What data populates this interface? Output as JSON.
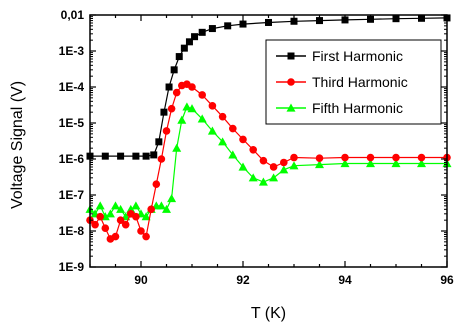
{
  "chart_data": {
    "type": "line",
    "title": "",
    "xlabel": "T (K)",
    "ylabel": "Voltage Signal (V)",
    "xlim": [
      89,
      96
    ],
    "ylim_log10": [
      -9,
      -2
    ],
    "y_scale": "log",
    "x_ticks": [
      90,
      92,
      94,
      96
    ],
    "x_tick_labels": [
      "90",
      "92",
      "94",
      "96"
    ],
    "y_ticks_log10": [
      -2,
      -3,
      -4,
      -5,
      -6,
      -7,
      -8,
      -9
    ],
    "y_tick_labels": [
      "0,01",
      "1E-3",
      "1E-4",
      "1E-5",
      "1E-6",
      "1E-7",
      "1E-8",
      "1E-9"
    ],
    "grid": false,
    "legend_position": "upper-right",
    "series": [
      {
        "name": "First Harmonic",
        "color": "#000000",
        "marker": "square",
        "x": [
          89.0,
          89.3,
          89.6,
          89.9,
          90.1,
          90.25,
          90.35,
          90.45,
          90.55,
          90.65,
          90.75,
          90.85,
          90.95,
          91.05,
          91.2,
          91.4,
          91.7,
          92.0,
          92.5,
          93.0,
          93.5,
          94.0,
          94.5,
          95.0,
          95.5,
          96.0
        ],
        "y": [
          1.2e-06,
          1.2e-06,
          1.2e-06,
          1.2e-06,
          1.2e-06,
          1.3e-06,
          3e-06,
          2e-05,
          0.0001,
          0.0003,
          0.0007,
          0.0012,
          0.0018,
          0.0025,
          0.0033,
          0.0042,
          0.005,
          0.0056,
          0.0062,
          0.0067,
          0.007,
          0.0073,
          0.0076,
          0.0079,
          0.0081,
          0.0083
        ]
      },
      {
        "name": "Third Harmonic",
        "color": "#ff0000",
        "marker": "circle",
        "x": [
          89.0,
          89.1,
          89.2,
          89.3,
          89.4,
          89.5,
          89.6,
          89.7,
          89.8,
          89.9,
          90.0,
          90.1,
          90.2,
          90.3,
          90.4,
          90.5,
          90.6,
          90.7,
          90.8,
          90.9,
          91.0,
          91.2,
          91.4,
          91.6,
          91.8,
          92.0,
          92.2,
          92.4,
          92.6,
          92.8,
          93.0,
          93.5,
          94.0,
          94.5,
          95.0,
          95.5,
          96.0
        ],
        "y": [
          2e-08,
          1.5e-08,
          2.5e-08,
          1.2e-08,
          6e-09,
          7e-09,
          2e-08,
          1.5e-08,
          3e-08,
          2.5e-08,
          1e-08,
          7e-09,
          4e-08,
          2e-07,
          1e-06,
          6e-06,
          2.5e-05,
          7e-05,
          0.00011,
          0.00012,
          0.0001,
          6e-05,
          3e-05,
          1.5e-05,
          7e-06,
          3.5e-06,
          1.8e-06,
          9e-07,
          6e-07,
          8e-07,
          1.1e-06,
          1.05e-06,
          1.1e-06,
          1.1e-06,
          1.1e-06,
          1.1e-06,
          1.1e-06
        ]
      },
      {
        "name": "Fifth Harmonic",
        "color": "#00ff00",
        "marker": "triangle",
        "x": [
          89.0,
          89.1,
          89.2,
          89.3,
          89.4,
          89.5,
          89.6,
          89.7,
          89.8,
          89.9,
          90.0,
          90.1,
          90.2,
          90.3,
          90.4,
          90.5,
          90.6,
          90.7,
          90.8,
          90.9,
          91.0,
          91.2,
          91.4,
          91.6,
          91.8,
          92.0,
          92.2,
          92.4,
          92.6,
          92.8,
          93.0,
          93.5,
          94.0,
          94.5,
          95.0,
          95.5,
          96.0
        ],
        "y": [
          4e-08,
          3e-08,
          5e-08,
          2.5e-08,
          3e-08,
          5e-08,
          4e-08,
          2.5e-08,
          4e-08,
          5e-08,
          3e-08,
          2.5e-08,
          4e-08,
          5e-08,
          5e-08,
          4e-08,
          8e-08,
          2e-06,
          1.2e-05,
          2.8e-05,
          2.5e-05,
          1.3e-05,
          6e-06,
          3e-06,
          1.3e-06,
          6e-07,
          3e-07,
          2.3e-07,
          3e-07,
          5e-07,
          6.5e-07,
          7e-07,
          7.5e-07,
          7.5e-07,
          7.5e-07,
          7.5e-07,
          7.5e-07
        ]
      }
    ]
  }
}
